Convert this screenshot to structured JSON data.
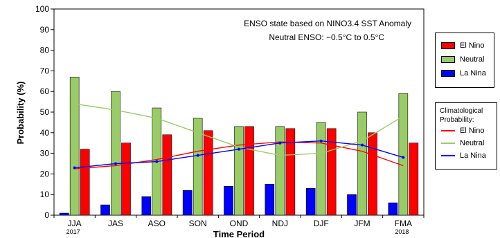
{
  "chart_data": {
    "type": "bar",
    "categories": [
      "JJA",
      "JAS",
      "ASO",
      "SON",
      "OND",
      "NDJ",
      "DJF",
      "JFM",
      "FMA"
    ],
    "category_sublabels": [
      "2017",
      "",
      "",
      "",
      "",
      "",
      "",
      "",
      "2018"
    ],
    "xlabel": "Time Period",
    "ylabel": "Probability (%)",
    "ylim": [
      0,
      100
    ],
    "yticks": [
      0,
      10,
      20,
      30,
      40,
      50,
      60,
      70,
      80,
      90,
      100
    ],
    "annotation_line1": "ENSO state based on NINO3.4 SST Anomaly",
    "annotation_line2": "Neutral ENSO: −0.5°C to 0.5°C",
    "series": [
      {
        "name": "La Nina",
        "color": "#0000ff",
        "values": [
          1,
          5,
          9,
          12,
          14,
          15,
          13,
          10,
          6
        ]
      },
      {
        "name": "Neutral",
        "color": "#99cc66",
        "values": [
          67,
          60,
          52,
          47,
          43,
          43,
          45,
          50,
          59
        ]
      },
      {
        "name": "El Nino",
        "color": "#ff0000",
        "values": [
          32,
          35,
          39,
          41,
          43,
          42,
          42,
          40,
          35
        ]
      }
    ],
    "climatology_title": "Climatological Probability:",
    "climatology": [
      {
        "name": "El Nino",
        "color": "#ff0000",
        "values": [
          22.5,
          24,
          27,
          31,
          34,
          35.5,
          35,
          31,
          24
        ]
      },
      {
        "name": "Neutral",
        "color": "#99cc66",
        "values": [
          54,
          51,
          47,
          40,
          33,
          29,
          30,
          36,
          48
        ]
      },
      {
        "name": "La Nina",
        "color": "#0000ff",
        "values": [
          23,
          25,
          26,
          29,
          32,
          35,
          36,
          34,
          28
        ]
      }
    ],
    "legend_position": "right",
    "grid": false
  }
}
